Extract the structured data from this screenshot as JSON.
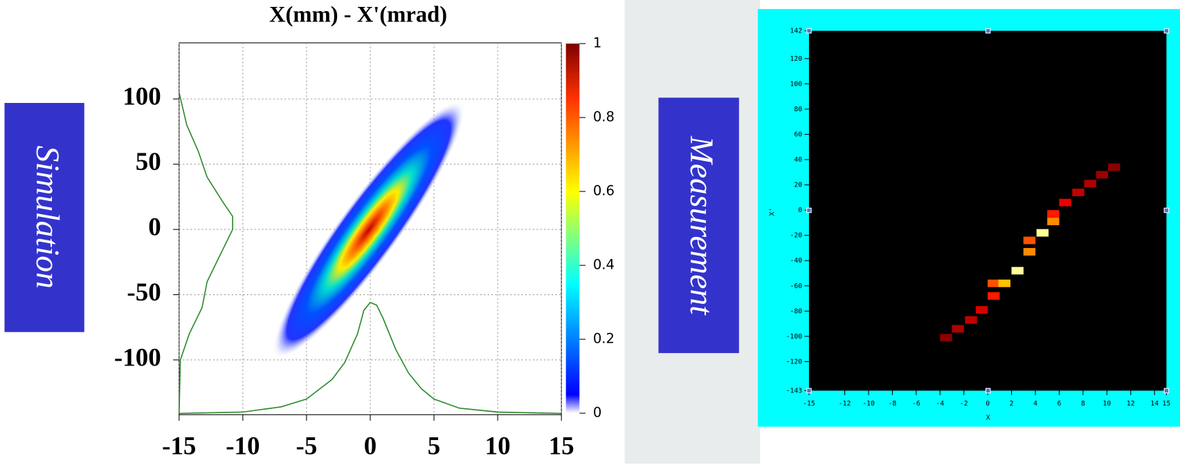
{
  "chart_data": [
    {
      "type": "heatmap",
      "title": "X(mm) - X'(mrad)",
      "label": "Simulation",
      "xlim": [
        -15,
        15
      ],
      "xticks": [
        -15,
        -10,
        -5,
        0,
        5,
        10,
        15
      ],
      "ylim": [
        -142,
        143
      ],
      "yticks": [
        -100,
        -50,
        0,
        50,
        100
      ],
      "grid": true,
      "colorbar": {
        "zlim": [
          0,
          1
        ],
        "zticks": [
          0,
          0.2,
          0.4,
          0.6,
          0.8,
          1
        ]
      },
      "profile_color": "#2a8a2a",
      "x_profile": {
        "x": [
          -15,
          -10,
          -7,
          -5,
          -3,
          -2,
          -1,
          -0.5,
          0,
          0.5,
          1,
          2,
          3,
          4,
          5,
          7,
          10,
          15
        ],
        "values": [
          -141,
          -140,
          -136,
          -130,
          -115,
          -102,
          -80,
          -62,
          -56,
          -58,
          -68,
          -92,
          -110,
          -122,
          -130,
          -137,
          -140,
          -141
        ]
      },
      "y_profile": {
        "y": [
          -141,
          -100,
          -80,
          -60,
          -40,
          -20,
          0,
          10,
          20,
          40,
          60,
          80,
          105
        ],
        "values": [
          -15,
          -14.9,
          -14.2,
          -13.2,
          -12.8,
          -11.8,
          -10.8,
          -10.8,
          -11.5,
          -12.8,
          -13.5,
          -14.4,
          -15
        ]
      }
    },
    {
      "type": "cells",
      "label": "Measurement",
      "xlabel": "X",
      "ylabel": "X'",
      "xlim": [
        -15,
        15
      ],
      "xticks": [
        -15,
        -12,
        -10,
        -8,
        -6,
        -4,
        -2,
        0,
        2,
        4,
        6,
        8,
        10,
        12,
        14,
        15
      ],
      "ylim": [
        -143,
        142
      ],
      "yticks": [
        -143,
        -120,
        -100,
        -80,
        -60,
        -40,
        -20,
        0,
        20,
        40,
        60,
        80,
        100,
        120,
        142
      ],
      "cells": {
        "x": [
          -3.5,
          -2.5,
          -1.4,
          -0.5,
          0.5,
          0.5,
          1.4,
          2.5,
          3.5,
          3.5,
          4.6,
          5.5,
          5.5,
          6.5,
          7.6,
          8.6,
          9.6,
          10.6
        ],
        "y": [
          -101,
          -94,
          -87,
          -79,
          -68,
          -58,
          -58,
          -48,
          -33,
          -24,
          -18,
          -9,
          -3,
          6,
          14,
          21,
          28,
          34
        ],
        "values": [
          0.15,
          0.25,
          0.3,
          0.35,
          0.5,
          0.6,
          0.8,
          1,
          0.7,
          0.6,
          1,
          0.7,
          0.5,
          0.4,
          0.3,
          0.25,
          0.2,
          0.15
        ]
      }
    }
  ]
}
